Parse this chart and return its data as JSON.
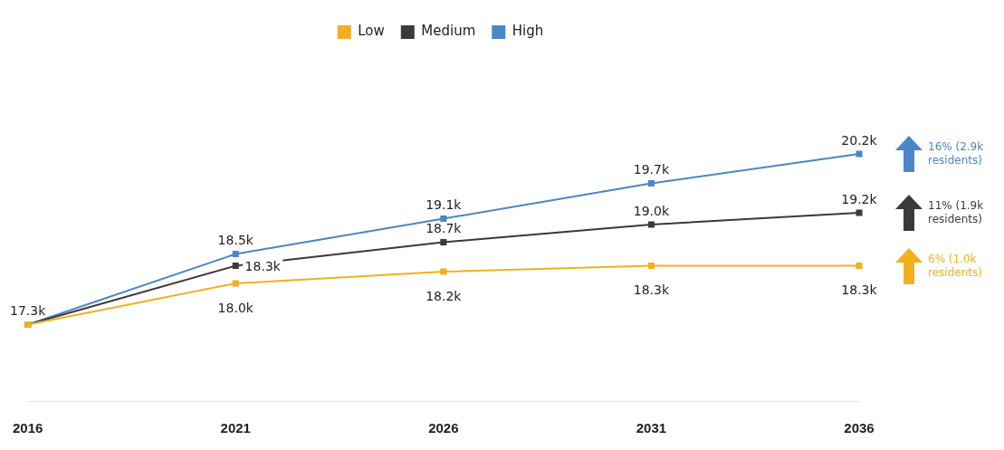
{
  "chart_data": {
    "type": "line",
    "categories": [
      "2016",
      "2021",
      "2026",
      "2031",
      "2036"
    ],
    "series": [
      {
        "name": "Low",
        "color": "#f2b01e",
        "values": [
          17.3,
          18.0,
          18.2,
          18.3,
          18.3
        ],
        "value_labels": [
          null,
          "18.0k",
          "18.2k",
          "18.3k",
          "18.3k"
        ]
      },
      {
        "name": "Medium",
        "color": "#3a3a3a",
        "values": [
          17.3,
          18.3,
          18.7,
          19.0,
          19.2
        ],
        "value_labels": [
          null,
          "18.3k",
          "18.7k",
          "19.0k",
          "19.2k"
        ]
      },
      {
        "name": "High",
        "color": "#4a86c8",
        "values": [
          17.3,
          18.5,
          19.1,
          19.7,
          20.2
        ],
        "value_labels": [
          "17.3k",
          "18.5k",
          "19.1k",
          "19.7k",
          "20.2k"
        ]
      }
    ],
    "annotations": [
      "16% (2.9k residents)",
      "11% (1.9k residents)",
      "6% (1.0k residents)"
    ],
    "legend": "top",
    "marker": "square",
    "line_style": "solid",
    "tick_labels": "x",
    "grid": false
  }
}
